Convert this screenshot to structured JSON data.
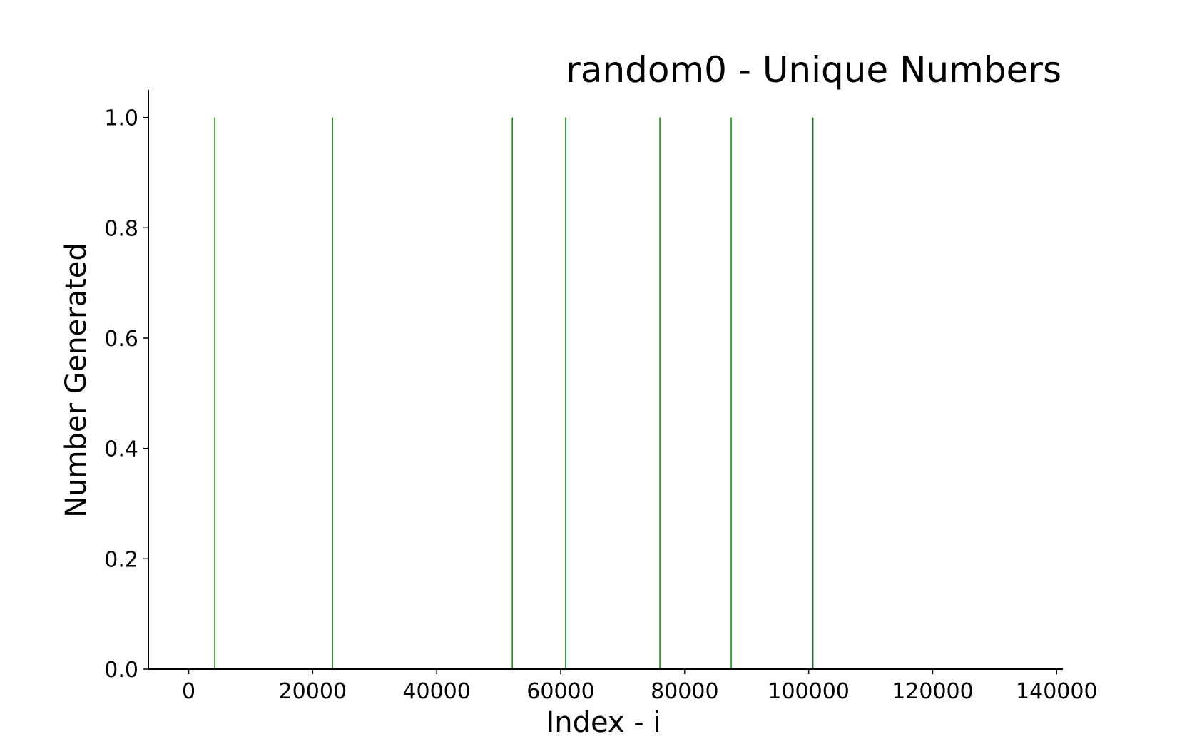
{
  "chart_data": {
    "type": "bar",
    "title": "random0 - Unique Numbers",
    "xlabel": "Index - i",
    "ylabel": "Number Generated",
    "x": [
      4200,
      23200,
      52200,
      60800,
      76000,
      87500,
      100700
    ],
    "values": [
      1.0,
      1.0,
      1.0,
      1.0,
      1.0,
      1.0,
      1.0
    ],
    "xlim": [
      -6500,
      141000
    ],
    "ylim": [
      0,
      1.05
    ],
    "xticks": [
      0,
      20000,
      40000,
      60000,
      80000,
      100000,
      120000,
      140000
    ],
    "xtick_labels": [
      "0",
      "20000",
      "40000",
      "60000",
      "80000",
      "100000",
      "120000",
      "140000"
    ],
    "yticks": [
      0.0,
      0.2,
      0.4,
      0.6,
      0.8,
      1.0
    ],
    "ytick_labels": [
      "0.0",
      "0.2",
      "0.4",
      "0.6",
      "0.8",
      "1.0"
    ],
    "grid": false,
    "legend": "none",
    "bar_color": "#008000",
    "axis_color": "#000000"
  }
}
